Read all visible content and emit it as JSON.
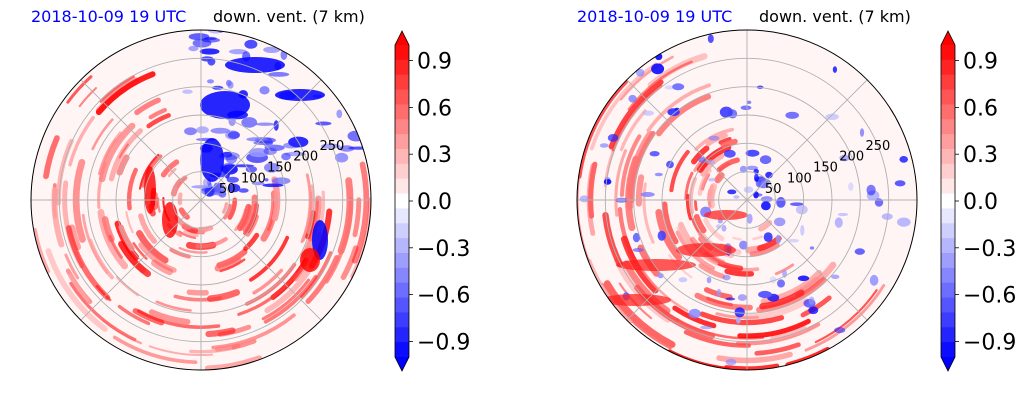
{
  "figure": {
    "panels": [
      {
        "time_label": "2018-10-09 19 UTC",
        "title": "down. vent. (7 km)",
        "colorbar_ticks": [
          "0.9",
          "0.6",
          "0.3",
          "0.0",
          "−0.3",
          "−0.6",
          "−0.9"
        ]
      },
      {
        "time_label": "2018-10-09 19 UTC",
        "title": "down. vent. (7 km)",
        "colorbar_ticks": [
          "0.9",
          "0.6",
          "0.3",
          "0.0",
          "−0.3",
          "−0.6",
          "−0.9"
        ]
      }
    ]
  },
  "colors": {
    "positive_max": "#ff0000",
    "neutral": "#ffffff",
    "negative_max": "#0000ff",
    "grid": "#b0b0b0",
    "time_label": "#0000ff"
  },
  "chart_data": [
    {
      "type": "heatmap",
      "projection": "polar",
      "title": "down. vent. (7 km)",
      "time": "2018-10-09 19 UTC",
      "radial_ticks": [
        50,
        100,
        150,
        200,
        250
      ],
      "radial_tick_labels": [
        "50",
        "100",
        "150",
        "200",
        "250"
      ],
      "radial_max": 300,
      "angular_grid_deg": [
        0,
        45,
        90,
        135,
        180,
        225,
        270,
        315
      ],
      "grid": true,
      "colormap": "bwr",
      "colorbar": {
        "min": -1.0,
        "max": 1.0,
        "levels": 21,
        "extend": "both",
        "ticks": [
          0.9,
          0.6,
          0.3,
          0.0,
          -0.3,
          -0.6,
          -0.9
        ],
        "position": "right"
      }
    },
    {
      "type": "heatmap",
      "projection": "polar",
      "title": "down. vent. (7 km)",
      "time": "2018-10-09 19 UTC",
      "radial_ticks": [
        50,
        100,
        150,
        200,
        250
      ],
      "radial_tick_labels": [
        "50",
        "100",
        "150",
        "200",
        "250"
      ],
      "radial_max": 300,
      "angular_grid_deg": [
        0,
        45,
        90,
        135,
        180,
        225,
        270,
        315
      ],
      "grid": true,
      "colormap": "bwr",
      "colorbar": {
        "min": -1.0,
        "max": 1.0,
        "levels": 21,
        "extend": "both",
        "ticks": [
          0.9,
          0.6,
          0.3,
          0.0,
          -0.3,
          -0.6,
          -0.9
        ],
        "position": "right"
      }
    }
  ]
}
